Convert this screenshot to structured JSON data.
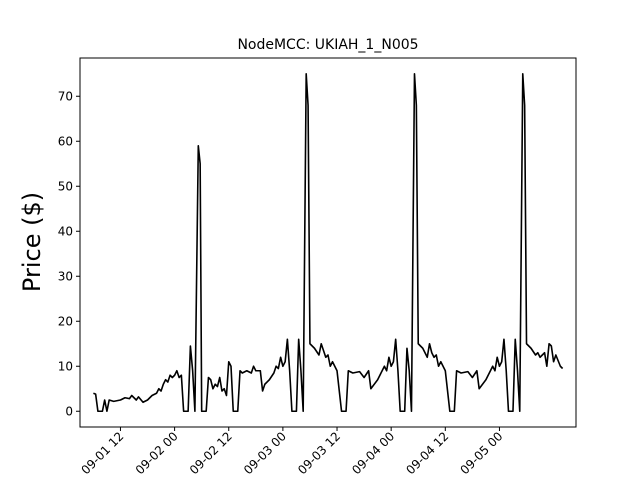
{
  "chart_data": {
    "type": "line",
    "title": "NodeMCC: UKIAH_1_N005",
    "xlabel": "",
    "ylabel": "Price ($)",
    "xlim": [
      "2023-09-01 03:02",
      "2023-09-05 16:58"
    ],
    "ylim": [
      -3.5,
      78.5
    ],
    "grid": false,
    "x_ticks": [
      {
        "x": "2023-09-01 12:00",
        "label": "09-01 12"
      },
      {
        "x": "2023-09-02 00:00",
        "label": "09-02 00"
      },
      {
        "x": "2023-09-02 12:00",
        "label": "09-02 12"
      },
      {
        "x": "2023-09-03 00:00",
        "label": "09-03 00"
      },
      {
        "x": "2023-09-03 12:00",
        "label": "09-03 12"
      },
      {
        "x": "2023-09-04 00:00",
        "label": "09-04 00"
      },
      {
        "x": "2023-09-04 12:00",
        "label": "09-04 12"
      },
      {
        "x": "2023-09-05 00:00",
        "label": "09-05 00"
      }
    ],
    "y_ticks": [
      0,
      10,
      20,
      30,
      40,
      50,
      60,
      70
    ],
    "series": [
      {
        "color": "#000000",
        "points": [
          [
            "2023-09-01 06:00",
            4
          ],
          [
            "2023-09-01 06:30",
            3.8
          ],
          [
            "2023-09-01 07:00",
            0
          ],
          [
            "2023-09-01 08:00",
            0
          ],
          [
            "2023-09-01 08:30",
            2.5
          ],
          [
            "2023-09-01 09:00",
            0
          ],
          [
            "2023-09-01 09:30",
            2.5
          ],
          [
            "2023-09-01 10:30",
            2.2
          ],
          [
            "2023-09-01 12:00",
            2.5
          ],
          [
            "2023-09-01 13:00",
            3
          ],
          [
            "2023-09-01 14:00",
            2.8
          ],
          [
            "2023-09-01 14:30",
            3.5
          ],
          [
            "2023-09-01 15:30",
            2.5
          ],
          [
            "2023-09-01 16:00",
            3.2
          ],
          [
            "2023-09-01 17:00",
            2
          ],
          [
            "2023-09-01 18:00",
            2.5
          ],
          [
            "2023-09-01 19:00",
            3.5
          ],
          [
            "2023-09-01 20:00",
            4
          ],
          [
            "2023-09-01 20:30",
            5
          ],
          [
            "2023-09-01 21:00",
            4.5
          ],
          [
            "2023-09-01 21:30",
            6
          ],
          [
            "2023-09-01 22:00",
            7
          ],
          [
            "2023-09-01 22:30",
            6.5
          ],
          [
            "2023-09-01 23:00",
            8
          ],
          [
            "2023-09-01 23:30",
            7.5
          ],
          [
            "2023-09-02 00:00",
            8
          ],
          [
            "2023-09-02 00:30",
            9
          ],
          [
            "2023-09-02 01:00",
            7.5
          ],
          [
            "2023-09-02 01:30",
            8
          ],
          [
            "2023-09-02 02:00",
            0
          ],
          [
            "2023-09-02 03:00",
            0
          ],
          [
            "2023-09-02 03:30",
            14.5
          ],
          [
            "2023-09-02 04:00",
            9
          ],
          [
            "2023-09-02 04:30",
            0
          ],
          [
            "2023-09-02 05:15",
            59
          ],
          [
            "2023-09-02 05:40",
            55
          ],
          [
            "2023-09-02 06:00",
            0
          ],
          [
            "2023-09-02 07:00",
            0
          ],
          [
            "2023-09-02 07:30",
            7.5
          ],
          [
            "2023-09-02 08:00",
            7
          ],
          [
            "2023-09-02 08:30",
            5
          ],
          [
            "2023-09-02 09:00",
            6
          ],
          [
            "2023-09-02 09:30",
            5.5
          ],
          [
            "2023-09-02 10:00",
            7.5
          ],
          [
            "2023-09-02 10:30",
            4.5
          ],
          [
            "2023-09-02 11:00",
            5
          ],
          [
            "2023-09-02 11:30",
            3.5
          ],
          [
            "2023-09-02 12:00",
            11
          ],
          [
            "2023-09-02 12:30",
            10
          ],
          [
            "2023-09-02 13:00",
            0
          ],
          [
            "2023-09-02 14:00",
            0
          ],
          [
            "2023-09-02 14:30",
            9
          ],
          [
            "2023-09-02 15:00",
            8.5
          ],
          [
            "2023-09-02 16:00",
            9
          ],
          [
            "2023-09-02 17:00",
            8.5
          ],
          [
            "2023-09-02 17:30",
            10
          ],
          [
            "2023-09-02 18:00",
            9
          ],
          [
            "2023-09-02 19:00",
            9
          ],
          [
            "2023-09-02 19:30",
            4.5
          ],
          [
            "2023-09-02 20:00",
            6
          ],
          [
            "2023-09-02 21:00",
            7
          ],
          [
            "2023-09-02 22:00",
            8.5
          ],
          [
            "2023-09-02 22:30",
            10
          ],
          [
            "2023-09-02 23:00",
            9.5
          ],
          [
            "2023-09-02 23:30",
            12
          ],
          [
            "2023-09-03 00:00",
            10
          ],
          [
            "2023-09-03 00:30",
            11
          ],
          [
            "2023-09-03 01:00",
            16
          ],
          [
            "2023-09-03 01:30",
            9
          ],
          [
            "2023-09-03 02:00",
            0
          ],
          [
            "2023-09-03 03:00",
            0
          ],
          [
            "2023-09-03 03:30",
            16
          ],
          [
            "2023-09-03 04:00",
            9
          ],
          [
            "2023-09-03 04:30",
            0
          ],
          [
            "2023-09-03 05:10",
            75
          ],
          [
            "2023-09-03 05:35",
            68
          ],
          [
            "2023-09-03 06:00",
            15
          ],
          [
            "2023-09-03 07:00",
            14
          ],
          [
            "2023-09-03 08:00",
            12.5
          ],
          [
            "2023-09-03 08:30",
            15
          ],
          [
            "2023-09-03 09:00",
            13.5
          ],
          [
            "2023-09-03 09:30",
            12
          ],
          [
            "2023-09-03 10:00",
            12.5
          ],
          [
            "2023-09-03 10:30",
            10
          ],
          [
            "2023-09-03 11:00",
            11
          ],
          [
            "2023-09-03 12:00",
            9
          ],
          [
            "2023-09-03 13:00",
            0
          ],
          [
            "2023-09-03 14:00",
            0
          ],
          [
            "2023-09-03 14:30",
            9
          ],
          [
            "2023-09-03 15:30",
            8.5
          ],
          [
            "2023-09-03 17:00",
            8.8
          ],
          [
            "2023-09-03 18:00",
            7.5
          ],
          [
            "2023-09-03 19:00",
            9
          ],
          [
            "2023-09-03 19:30",
            5
          ],
          [
            "2023-09-03 21:00",
            7
          ],
          [
            "2023-09-03 22:00",
            9
          ],
          [
            "2023-09-03 22:30",
            10
          ],
          [
            "2023-09-03 23:00",
            9
          ],
          [
            "2023-09-03 23:30",
            12
          ],
          [
            "2023-09-04 00:00",
            10
          ],
          [
            "2023-09-04 00:30",
            11
          ],
          [
            "2023-09-04 01:00",
            16
          ],
          [
            "2023-09-04 01:30",
            9
          ],
          [
            "2023-09-04 02:00",
            0
          ],
          [
            "2023-09-04 03:00",
            0
          ],
          [
            "2023-09-04 03:30",
            14
          ],
          [
            "2023-09-04 04:00",
            9
          ],
          [
            "2023-09-04 04:30",
            0
          ],
          [
            "2023-09-04 05:10",
            75
          ],
          [
            "2023-09-04 05:35",
            68
          ],
          [
            "2023-09-04 06:00",
            15
          ],
          [
            "2023-09-04 07:00",
            14
          ],
          [
            "2023-09-04 08:00",
            12
          ],
          [
            "2023-09-04 08:30",
            15
          ],
          [
            "2023-09-04 09:00",
            13
          ],
          [
            "2023-09-04 09:30",
            12
          ],
          [
            "2023-09-04 10:00",
            12.5
          ],
          [
            "2023-09-04 10:30",
            10
          ],
          [
            "2023-09-04 11:00",
            11
          ],
          [
            "2023-09-04 12:00",
            9
          ],
          [
            "2023-09-04 13:00",
            0
          ],
          [
            "2023-09-04 14:00",
            0
          ],
          [
            "2023-09-04 14:30",
            9
          ],
          [
            "2023-09-04 15:30",
            8.5
          ],
          [
            "2023-09-04 17:00",
            8.8
          ],
          [
            "2023-09-04 18:00",
            7.5
          ],
          [
            "2023-09-04 19:00",
            9
          ],
          [
            "2023-09-04 19:30",
            5
          ],
          [
            "2023-09-04 21:00",
            7
          ],
          [
            "2023-09-04 22:00",
            9
          ],
          [
            "2023-09-04 22:30",
            10
          ],
          [
            "2023-09-04 23:00",
            9
          ],
          [
            "2023-09-04 23:30",
            12
          ],
          [
            "2023-09-05 00:00",
            10
          ],
          [
            "2023-09-05 00:30",
            11
          ],
          [
            "2023-09-05 01:00",
            16
          ],
          [
            "2023-09-05 01:30",
            9
          ],
          [
            "2023-09-05 02:00",
            0
          ],
          [
            "2023-09-05 03:00",
            0
          ],
          [
            "2023-09-05 03:30",
            16
          ],
          [
            "2023-09-05 04:00",
            9
          ],
          [
            "2023-09-05 04:30",
            0
          ],
          [
            "2023-09-05 05:10",
            75
          ],
          [
            "2023-09-05 05:35",
            68
          ],
          [
            "2023-09-05 06:00",
            15
          ],
          [
            "2023-09-05 07:00",
            14
          ],
          [
            "2023-09-05 08:00",
            12.5
          ],
          [
            "2023-09-05 08:30",
            13
          ],
          [
            "2023-09-05 09:00",
            12
          ],
          [
            "2023-09-05 10:00",
            13
          ],
          [
            "2023-09-05 10:30",
            10
          ],
          [
            "2023-09-05 11:00",
            15
          ],
          [
            "2023-09-05 11:30",
            14.5
          ],
          [
            "2023-09-05 12:00",
            11
          ],
          [
            "2023-09-05 12:30",
            12.5
          ],
          [
            "2023-09-05 13:30",
            10
          ],
          [
            "2023-09-05 14:00",
            9.5
          ]
        ]
      }
    ]
  }
}
